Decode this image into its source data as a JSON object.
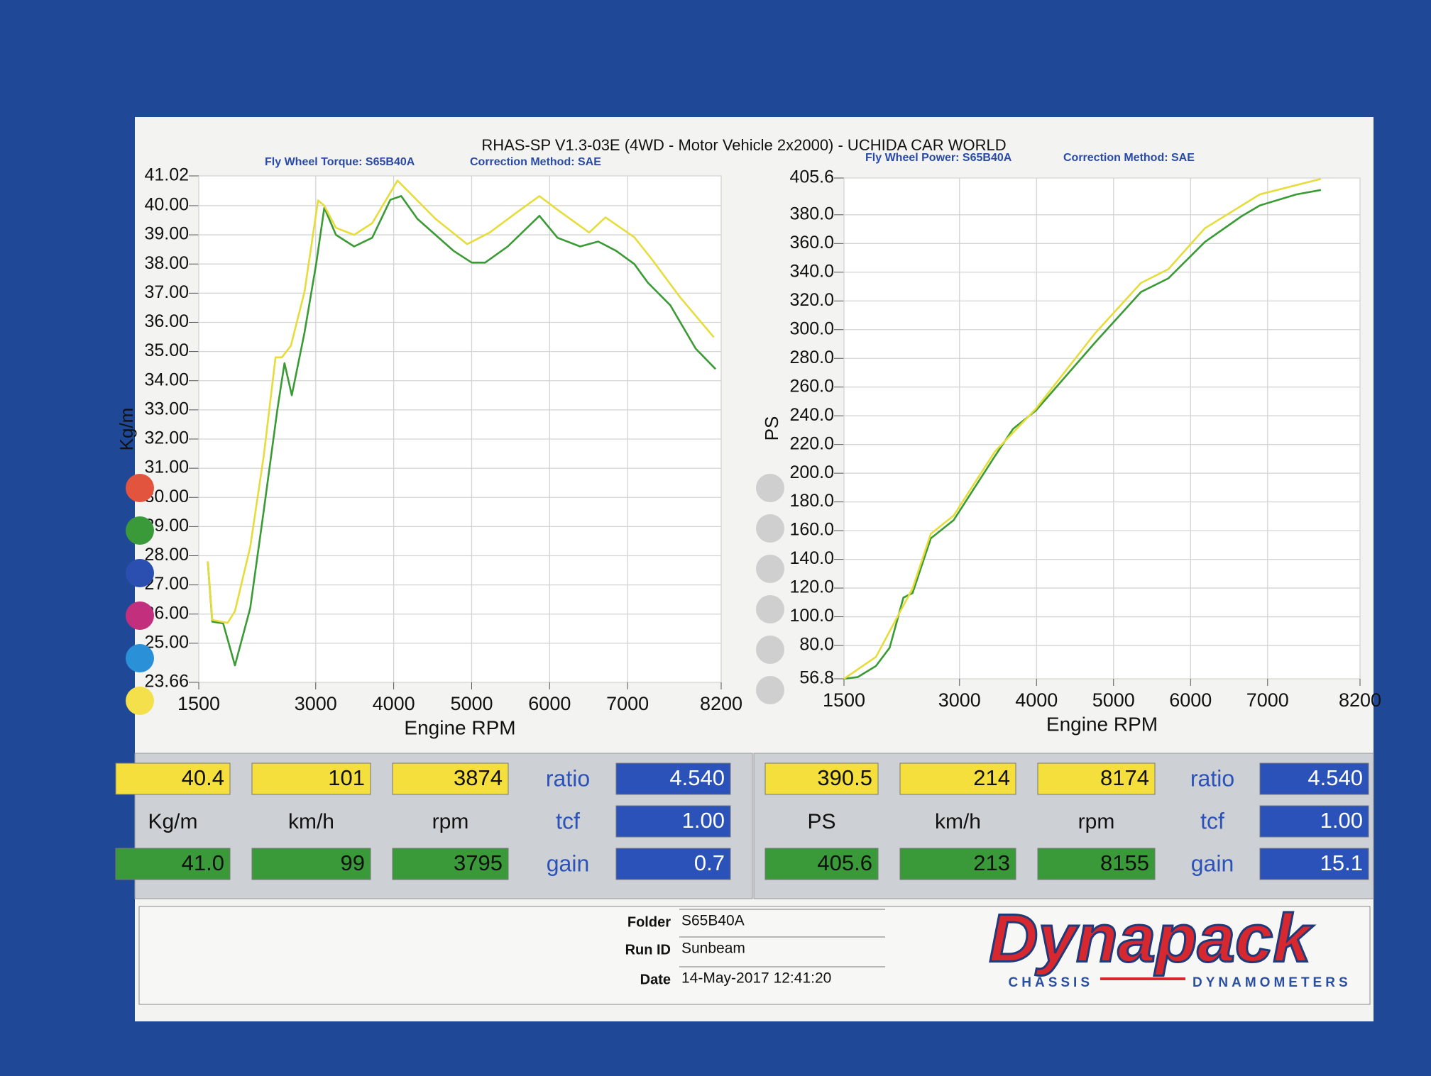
{
  "header": {
    "title": "RHAS-SP V1.3-03E  (4WD - Motor Vehicle 2x2000) - UCHIDA CAR WORLD"
  },
  "chart_data": [
    {
      "type": "line",
      "subtitle": "Fly Wheel Torque: S65B40A",
      "annotation": "Correction Method: SAE",
      "x_label": "Engine RPM",
      "y_label": "Kg/m",
      "xlim": [
        1500,
        8200
      ],
      "xticks": [
        1500,
        3000,
        4000,
        5000,
        6000,
        7000,
        8200
      ],
      "ylim": [
        23.66,
        41.02
      ],
      "yticks": [
        23.66,
        {
          "value": 25,
          "label": "25.00"
        },
        {
          "value": 26,
          "label": "26.00"
        },
        {
          "value": 27,
          "label": "27.00"
        },
        {
          "value": 28,
          "label": "28.00"
        },
        {
          "value": 29,
          "label": "29.00"
        },
        {
          "value": 30,
          "label": "30.00"
        },
        {
          "value": 31,
          "label": "31.00"
        },
        {
          "value": 32,
          "label": "32.00"
        },
        {
          "value": 33,
          "label": "33.00"
        },
        {
          "value": 34,
          "label": "34.00"
        },
        {
          "value": 35,
          "label": "35.00"
        },
        {
          "value": 36,
          "label": "36.00"
        },
        {
          "value": 37,
          "label": "37.00"
        },
        {
          "value": 38,
          "label": "38.00"
        },
        {
          "value": 39,
          "label": "39.00"
        },
        {
          "value": 40,
          "label": "40.00"
        },
        41.02
      ],
      "grid": true,
      "series": [
        {
          "color": "#3a9a34",
          "x": [
            1616,
            1674,
            1813,
            1964,
            2160,
            2334,
            2508,
            2600,
            2693,
            2856,
            3006,
            3110,
            3260,
            3493,
            3725,
            3957,
            4096,
            4304,
            4536,
            4768,
            5000,
            5173,
            5463,
            5869,
            6101,
            6391,
            6623,
            6854,
            7086,
            7260,
            7549,
            7873,
            8128
          ],
          "values": [
            27.8,
            25.74,
            25.68,
            24.24,
            26.2,
            29.55,
            33.0,
            34.6,
            33.5,
            35.65,
            38.0,
            39.93,
            39.0,
            38.6,
            38.9,
            40.2,
            40.33,
            39.55,
            39.0,
            38.45,
            38.05,
            38.05,
            38.6,
            39.65,
            38.9,
            38.6,
            38.77,
            38.45,
            38.0,
            37.36,
            36.58,
            35.1,
            34.4
          ]
        },
        {
          "color": "#e6dc3a",
          "x": [
            1616,
            1674,
            1871,
            1964,
            2160,
            2334,
            2485,
            2566,
            2682,
            2856,
            3030,
            3110,
            3260,
            3493,
            3725,
            4049,
            4247,
            4536,
            4942,
            5231,
            5579,
            5869,
            6101,
            6507,
            6716,
            7086,
            7318,
            7665,
            8105
          ],
          "values": [
            27.8,
            25.8,
            25.7,
            26.1,
            28.3,
            31.43,
            34.8,
            34.8,
            35.2,
            37.05,
            40.18,
            40.0,
            39.24,
            39.0,
            39.4,
            40.86,
            40.33,
            39.55,
            38.68,
            39.08,
            39.77,
            40.33,
            39.86,
            39.08,
            39.6,
            38.92,
            38.14,
            36.89,
            35.49
          ]
        }
      ]
    },
    {
      "type": "line",
      "subtitle": "Fly Wheel Power: S65B40A",
      "annotation": "Correction Method: SAE",
      "x_label": "Engine RPM",
      "y_label": "PS",
      "xlim": [
        1500,
        8200
      ],
      "xticks": [
        1500,
        3000,
        4000,
        5000,
        6000,
        7000,
        8200
      ],
      "ylim": [
        56.8,
        405.6
      ],
      "yticks": [
        56.8,
        {
          "value": 80,
          "label": "80.0"
        },
        {
          "value": 100,
          "label": "100.0"
        },
        {
          "value": 120,
          "label": "120.0"
        },
        {
          "value": 140,
          "label": "140.0"
        },
        {
          "value": 160,
          "label": "160.0"
        },
        {
          "value": 180,
          "label": "180.0"
        },
        {
          "value": 200,
          "label": "200.0"
        },
        {
          "value": 220,
          "label": "220.0"
        },
        {
          "value": 240,
          "label": "240.0"
        },
        {
          "value": 260,
          "label": "260.0"
        },
        {
          "value": 280,
          "label": "280.0"
        },
        {
          "value": 300,
          "label": "300.0"
        },
        {
          "value": 320,
          "label": "320.0"
        },
        {
          "value": 340,
          "label": "340.0"
        },
        {
          "value": 360,
          "label": "360.0"
        },
        {
          "value": 380,
          "label": "380.0"
        },
        405.6
      ],
      "grid": true,
      "series": [
        {
          "color": "#3a9a34",
          "x": [
            1500,
            1678,
            1915,
            2093,
            2271,
            2390,
            2627,
            2924,
            3458,
            3695,
            3991,
            4762,
            5355,
            5711,
            6186,
            6660,
            6898,
            7372,
            7692
          ],
          "values": [
            56.8,
            58,
            65.7,
            78.4,
            113.3,
            116.5,
            154.6,
            167.3,
            211.8,
            230.9,
            243.6,
            291.2,
            326.2,
            335.7,
            361.1,
            378.9,
            386.5,
            394.2,
            397.3
          ]
        },
        {
          "color": "#e6dc3a",
          "x": [
            1500,
            1915,
            2390,
            2627,
            2924,
            3458,
            3991,
            4762,
            5355,
            5711,
            6186,
            6898,
            7692
          ],
          "values": [
            56.8,
            72,
            119.7,
            157.8,
            170.5,
            215,
            244.9,
            297.6,
            332.5,
            342.1,
            370.6,
            394.2,
            405
          ]
        }
      ]
    }
  ],
  "readouts": [
    {
      "yellow": [
        "40.4",
        "101",
        "3874"
      ],
      "units": [
        "Kg/m",
        "km/h",
        "rpm"
      ],
      "green": [
        "41.0",
        "99",
        "3795"
      ],
      "ratio_label": "ratio",
      "ratio": "4.540",
      "tcf_label": "tcf",
      "tcf": "1.00",
      "gain_label": "gain",
      "gain": "0.7"
    },
    {
      "yellow": [
        "390.5",
        "214",
        "8174"
      ],
      "units": [
        "PS",
        "km/h",
        "rpm"
      ],
      "green": [
        "405.6",
        "213",
        "8155"
      ],
      "ratio_label": "ratio",
      "ratio": "4.540",
      "tcf_label": "tcf",
      "tcf": "1.00",
      "gain_label": "gain",
      "gain": "15.1"
    }
  ],
  "footer": {
    "folder_label": "Folder",
    "folder": "S65B40A",
    "run_label": "Run ID",
    "run": "Sunbeam",
    "date_label": "Date",
    "date": "14-May-2017  12:41:20",
    "logo": "Dynapack",
    "logo_left": "CHASSIS",
    "logo_right": "DYNAMOMETERS"
  }
}
